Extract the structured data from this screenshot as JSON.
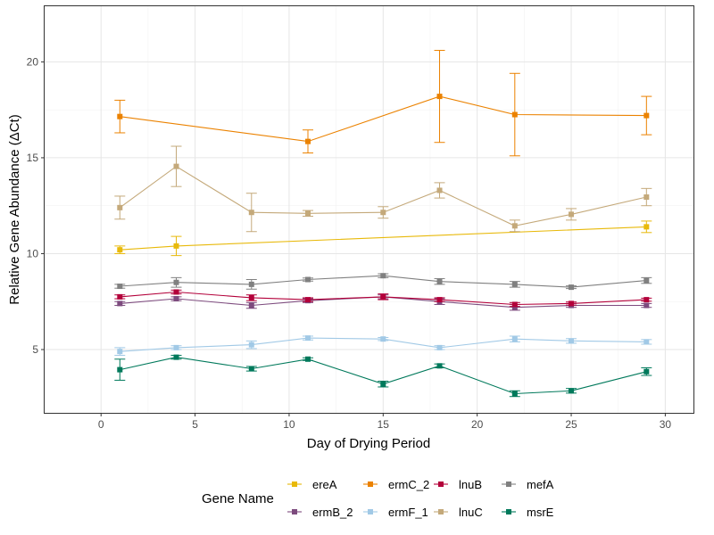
{
  "chart_data": {
    "type": "line",
    "xlabel": "Day of Drying Period",
    "ylabel": "Relative Gene Abundance (ΔCt)",
    "xlim": [
      -3,
      31.5
    ],
    "ylim": [
      1.7,
      22.9
    ],
    "x_ticks": [
      0,
      5,
      10,
      15,
      20,
      25,
      30
    ],
    "y_ticks": [
      5,
      10,
      15,
      20
    ],
    "grid": true,
    "legend": {
      "title": "Gene Name",
      "position": "bottom",
      "order": [
        "ereA",
        "ermC_2",
        "lnuB",
        "mefA",
        "ermB_2",
        "ermF_1",
        "lnuC",
        "msrE"
      ]
    },
    "series": [
      {
        "name": "ereA",
        "color": "#E8B90A",
        "x": [
          1,
          4,
          29
        ],
        "y": [
          10.2,
          10.4,
          11.4
        ],
        "err": [
          0.2,
          0.5,
          0.3
        ]
      },
      {
        "name": "ermB_2",
        "color": "#7D4B7E",
        "x": [
          1,
          4,
          8,
          11,
          15,
          18,
          22,
          25,
          29
        ],
        "y": [
          7.4,
          7.65,
          7.3,
          7.55,
          7.75,
          7.5,
          7.2,
          7.3,
          7.3
        ],
        "err": [
          0.1,
          0.1,
          0.15,
          0.1,
          0.1,
          0.15,
          0.15,
          0.1,
          0.1
        ]
      },
      {
        "name": "ermC_2",
        "color": "#EB8200",
        "x": [
          1,
          11,
          18,
          22,
          29
        ],
        "y": [
          17.15,
          15.85,
          18.2,
          17.25,
          17.2
        ],
        "err": [
          0.85,
          0.6,
          2.4,
          2.15,
          1.0
        ]
      },
      {
        "name": "ermF_1",
        "color": "#A1C9E6",
        "x": [
          1,
          4,
          8,
          11,
          15,
          18,
          22,
          25,
          29
        ],
        "y": [
          4.9,
          5.1,
          5.25,
          5.6,
          5.55,
          5.1,
          5.55,
          5.45,
          5.4
        ],
        "err": [
          0.2,
          0.1,
          0.2,
          0.1,
          0.08,
          0.1,
          0.15,
          0.12,
          0.12
        ]
      },
      {
        "name": "lnuB",
        "color": "#B3003A",
        "x": [
          1,
          4,
          8,
          11,
          15,
          18,
          22,
          25,
          29
        ],
        "y": [
          7.75,
          8.0,
          7.7,
          7.6,
          7.75,
          7.6,
          7.35,
          7.4,
          7.6
        ],
        "err": [
          0.1,
          0.1,
          0.15,
          0.1,
          0.15,
          0.1,
          0.1,
          0.08,
          0.08
        ]
      },
      {
        "name": "lnuC",
        "color": "#C4A97A",
        "x": [
          1,
          4,
          8,
          11,
          15,
          18,
          22,
          25,
          29
        ],
        "y": [
          12.4,
          14.55,
          12.15,
          12.1,
          12.15,
          13.3,
          11.45,
          12.05,
          12.95
        ],
        "err": [
          0.6,
          1.05,
          1.0,
          0.15,
          0.3,
          0.4,
          0.3,
          0.3,
          0.45
        ]
      },
      {
        "name": "mefA",
        "color": "#808080",
        "x": [
          1,
          4,
          8,
          11,
          15,
          18,
          22,
          25,
          29
        ],
        "y": [
          8.3,
          8.5,
          8.4,
          8.65,
          8.85,
          8.55,
          8.4,
          8.25,
          8.6
        ],
        "err": [
          0.1,
          0.25,
          0.25,
          0.08,
          0.1,
          0.15,
          0.15,
          0.07,
          0.15
        ]
      },
      {
        "name": "msrE",
        "color": "#00795B",
        "x": [
          1,
          4,
          8,
          11,
          15,
          18,
          22,
          25,
          29
        ],
        "y": [
          3.95,
          4.6,
          4.0,
          4.5,
          3.2,
          4.15,
          2.7,
          2.85,
          3.85
        ],
        "err": [
          0.55,
          0.1,
          0.12,
          0.07,
          0.15,
          0.1,
          0.15,
          0.12,
          0.2
        ]
      }
    ]
  }
}
